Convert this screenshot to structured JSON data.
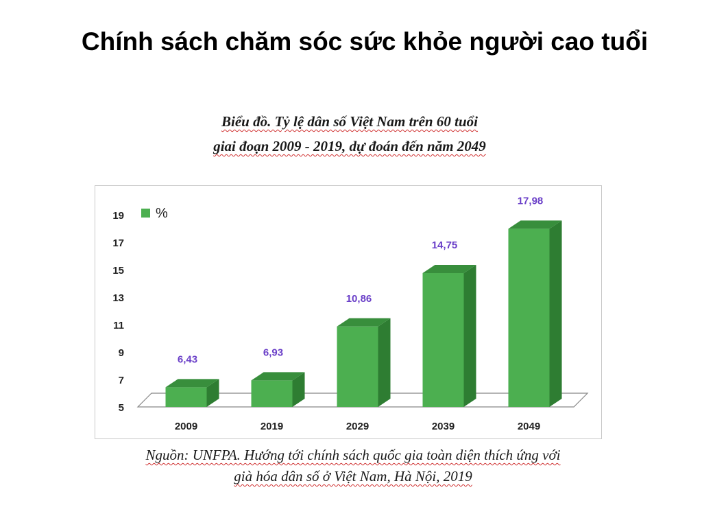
{
  "slide": {
    "title": "Chính sách chăm sóc sức khỏe người cao tuổi"
  },
  "chart_data": {
    "type": "bar",
    "title_line1": "Biểu đồ. Tỷ lệ dân số Việt Nam trên 60 tuổi",
    "title_line2": "giai đoạn 2009 - 2019, dự đoán đến năm 2049",
    "categories": [
      "2009",
      "2019",
      "2029",
      "2039",
      "2049"
    ],
    "series": [
      {
        "name": "%",
        "values": [
          6.43,
          6.93,
          10.86,
          14.75,
          17.98
        ]
      }
    ],
    "data_labels": [
      "6,43",
      "6,93",
      "10,86",
      "14,75",
      "17,98"
    ],
    "yticks": [
      "5",
      "7",
      "9",
      "11",
      "13",
      "15",
      "17",
      "19"
    ],
    "ylim": [
      5,
      19
    ],
    "legend_position": "top-left",
    "grid": false,
    "colors": {
      "bar_front": "#4caf50",
      "bar_side": "#2e7d32",
      "bar_top": "#388e3c",
      "data_label": "#6a3fc8",
      "floor": "#888888"
    },
    "source_line1": "Nguồn: UNFPA. Hướng tới chính sách quốc gia toàn diện thích ứng với",
    "source_line2": "già hóa dân số ở Việt Nam, Hà Nội, 2019"
  }
}
